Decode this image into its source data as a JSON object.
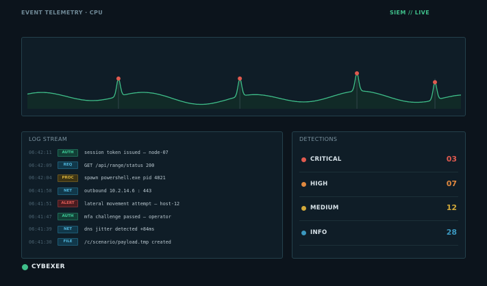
{
  "header": {
    "title": "EVENT TELEMETRY · CPU",
    "status": "SIEM // LIVE"
  },
  "log": {
    "title": "LOG STREAM",
    "entries": [
      {
        "time": "06:42:11",
        "tag": "AUTH",
        "message": "session token issued — node-07"
      },
      {
        "time": "06:42:09",
        "tag": "REQ",
        "message": "GET /api/range/status  200"
      },
      {
        "time": "06:42:04",
        "tag": "PROC",
        "message": "spawn powershell.exe  pid 4821"
      },
      {
        "time": "06:41:58",
        "tag": "NET",
        "message": "outbound 10.2.14.6 : 443"
      },
      {
        "time": "06:41:51",
        "tag": "ALERT",
        "message": "lateral movement attempt — host-12"
      },
      {
        "time": "06:41:47",
        "tag": "AUTH",
        "message": "mfa challenge passed — operator"
      },
      {
        "time": "06:41:39",
        "tag": "NET",
        "message": "dns jitter detected  +84ms"
      },
      {
        "time": "06:41:30",
        "tag": "FILE",
        "message": "/c/scenario/payload.tmp created"
      }
    ]
  },
  "tag_colors": {
    "AUTH": {
      "bg": "#123f36",
      "fg": "#3fd09a",
      "border": "#1f6a56"
    },
    "REQ": {
      "bg": "#11384a",
      "fg": "#4fb3d9",
      "border": "#1d5a73"
    },
    "PROC": {
      "bg": "#3d3414",
      "fg": "#d7b23c",
      "border": "#665522"
    },
    "NET": {
      "bg": "#11384a",
      "fg": "#4fb3d9",
      "border": "#1d5a73"
    },
    "ALERT": {
      "bg": "#4a1c20",
      "fg": "#e6605a",
      "border": "#753034"
    },
    "FILE": {
      "bg": "#11384a",
      "fg": "#4fb3d9",
      "border": "#1d5a73"
    }
  },
  "detections": {
    "title": "DETECTIONS",
    "items": [
      {
        "label": "CRITICAL",
        "count": "03",
        "color": "#e05a4f"
      },
      {
        "label": "HIGH",
        "count": "07",
        "color": "#e0883f"
      },
      {
        "label": "MEDIUM",
        "count": "12",
        "color": "#d2a93a"
      },
      {
        "label": "INFO",
        "count": "28",
        "color": "#3b98bf"
      }
    ]
  },
  "chart": {
    "line_color": "#3fbf8a",
    "spike_color": "#e05a4f",
    "spikes": [
      0.21,
      0.49,
      0.76,
      0.94
    ]
  },
  "brand": {
    "name": "CYBEXER"
  }
}
